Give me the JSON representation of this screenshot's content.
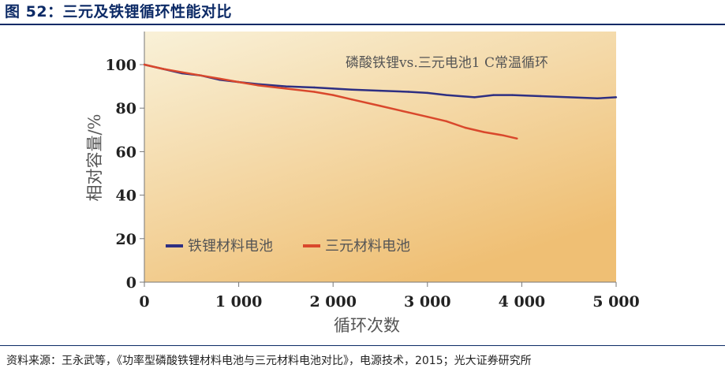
{
  "figure": {
    "title": "图 52：三元及铁锂循环性能对比",
    "source": "资料来源：王永武等，《功率型磷酸铁锂材料电池与三元材料电池对比》，电源技术，2015；光大证券研究所"
  },
  "chart_data": {
    "type": "line",
    "title": "磷酸铁锂vs.三元电池1 C常温循环",
    "xlabel": "循环次数",
    "ylabel": "相对容量/%",
    "xlim": [
      0,
      5000
    ],
    "ylim": [
      0,
      100
    ],
    "xticks": [
      0,
      1000,
      2000,
      3000,
      4000,
      5000
    ],
    "xtick_labels": [
      "0",
      "1 000",
      "2 000",
      "3 000",
      "4 000",
      "5 000"
    ],
    "yticks": [
      0,
      20,
      40,
      60,
      80,
      100
    ],
    "ytick_labels": [
      "0",
      "20",
      "40",
      "60",
      "80",
      "100"
    ],
    "grid": false,
    "legend_position": "lower-left",
    "series": [
      {
        "name": "铁锂材料电池",
        "color": "#2e2f82",
        "x": [
          0,
          100,
          200,
          400,
          600,
          800,
          1000,
          1200,
          1500,
          1800,
          2000,
          2200,
          2500,
          2800,
          3000,
          3200,
          3500,
          3700,
          3900,
          4200,
          4500,
          4800,
          5000
        ],
        "y": [
          100,
          99,
          98,
          96,
          95,
          93,
          92,
          91,
          90,
          89.5,
          89,
          88.5,
          88,
          87.5,
          87,
          86,
          85,
          86,
          86,
          85.5,
          85,
          84.5,
          85
        ]
      },
      {
        "name": "三元材料电池",
        "color": "#d9482c",
        "x": [
          0,
          200,
          400,
          600,
          800,
          1000,
          1200,
          1500,
          1800,
          2000,
          2200,
          2500,
          2800,
          3000,
          3200,
          3400,
          3600,
          3800,
          3950
        ],
        "y": [
          100,
          98,
          96.5,
          95,
          93.5,
          92,
          90.5,
          89,
          87.5,
          86,
          84,
          81,
          78,
          76,
          74,
          71,
          69,
          67.5,
          66
        ]
      }
    ],
    "background_gradient": [
      "#f9f1d8",
      "#efbf74"
    ]
  }
}
